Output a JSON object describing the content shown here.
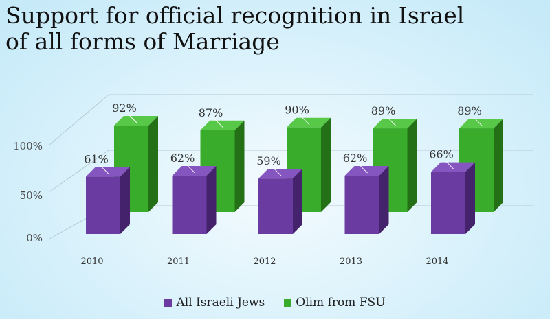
{
  "title_lines": [
    "Support for official recognition in Israel",
    "of all forms of Marriage"
  ],
  "colors": {
    "series1": {
      "front": "#6a3ba0",
      "top": "#8656c0",
      "side": "#45226c"
    },
    "series2": {
      "front": "#3aac2c",
      "top": "#58c848",
      "side": "#247016"
    }
  },
  "chart_data": {
    "type": "bar",
    "style": "3d-clustered-columns",
    "title": "Support for official recognition in Israel of all forms of Marriage",
    "categories": [
      "2010",
      "2011",
      "2012",
      "2013",
      "2014"
    ],
    "series": [
      {
        "name": "All Israeli Jews",
        "values": [
          61,
          62,
          59,
          62,
          66
        ],
        "labels": [
          "61%",
          "62%",
          "59%",
          "62%",
          "66%"
        ]
      },
      {
        "name": "Olim from FSU",
        "values": [
          92,
          87,
          90,
          89,
          89
        ],
        "labels": [
          "92%",
          "87%",
          "90%",
          "89%",
          "89%"
        ]
      }
    ],
    "yticks": [
      0,
      50,
      100
    ],
    "ytick_labels": [
      "0%",
      "50%",
      "100%"
    ],
    "ylim": [
      0,
      100
    ],
    "xlabel": "",
    "ylabel": "",
    "grid": true,
    "legend": "bottom"
  }
}
